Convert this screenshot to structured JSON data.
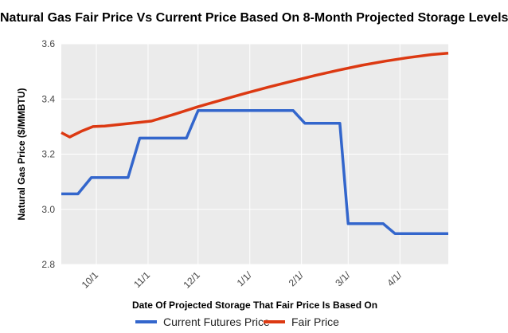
{
  "chart_data": {
    "type": "line",
    "title": "Natural Gas Fair Price Vs Current Price Based On 8-Month Projected Storage Levels",
    "xlabel": "Date Of Projected Storage That Fair Price Is Based On",
    "ylabel": "Natural Gas Price ($/MMBTU)",
    "ylim": [
      2.8,
      3.6
    ],
    "yticks": [
      "2.8",
      "3.0",
      "3.2",
      "3.4",
      "3.6"
    ],
    "x_tick_labels": [
      "10/1",
      "11/1",
      "12/1",
      "1/1/",
      "2/1/",
      "3/1/",
      "4/1/"
    ],
    "grid": true,
    "legend_position": "bottom",
    "series": [
      {
        "name": "Current Futures Price",
        "color": "#3366cc",
        "points": [
          [
            "9/10",
            3.056
          ],
          [
            "9/20",
            3.056
          ],
          [
            "9/28",
            3.115
          ],
          [
            "10/20",
            3.115
          ],
          [
            "10/27",
            3.258
          ],
          [
            "11/24",
            3.258
          ],
          [
            "12/1",
            3.358
          ],
          [
            "1/27",
            3.358
          ],
          [
            "2/3",
            3.312
          ],
          [
            "2/24",
            3.312
          ],
          [
            "3/1",
            2.948
          ],
          [
            "3/22",
            2.948
          ],
          [
            "3/29",
            2.912
          ],
          [
            "4/30",
            2.912
          ]
        ]
      },
      {
        "name": "Fair Price",
        "color": "#dc3912",
        "points": [
          [
            "9/10",
            3.278
          ],
          [
            "9/15",
            3.262
          ],
          [
            "9/22",
            3.283
          ],
          [
            "9/29",
            3.3
          ],
          [
            "10/6",
            3.302
          ],
          [
            "10/20",
            3.311
          ],
          [
            "11/3",
            3.32
          ],
          [
            "11/17",
            3.345
          ],
          [
            "12/1",
            3.372
          ],
          [
            "12/15",
            3.396
          ],
          [
            "12/29",
            3.42
          ],
          [
            "1/12",
            3.443
          ],
          [
            "1/26",
            3.464
          ],
          [
            "2/9",
            3.485
          ],
          [
            "2/23",
            3.504
          ],
          [
            "3/9",
            3.522
          ],
          [
            "3/23",
            3.537
          ],
          [
            "4/6",
            3.55
          ],
          [
            "4/20",
            3.561
          ],
          [
            "4/30",
            3.566
          ]
        ]
      }
    ]
  }
}
